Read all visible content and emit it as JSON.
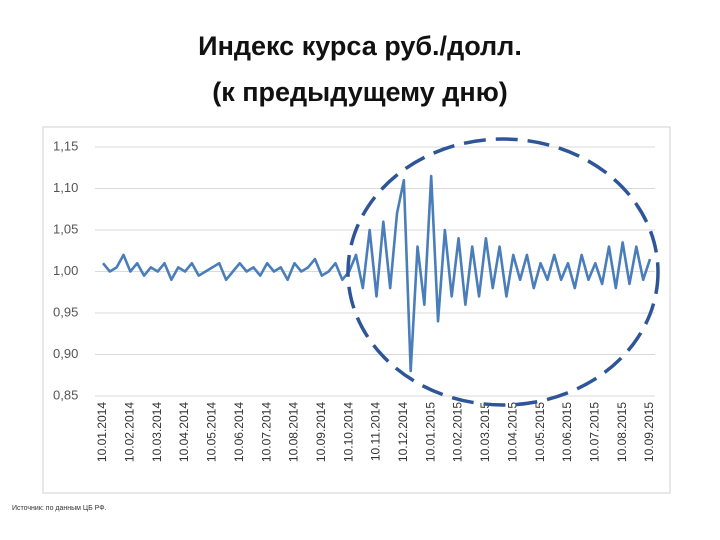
{
  "title_lines": [
    "Индекс курса руб./долл.",
    "(к предыдущему дню)"
  ],
  "source": "Источник: по данным ЦБ РФ.",
  "chart_data": {
    "type": "line",
    "categories": [
      "10.01.2014",
      null,
      null,
      null,
      "10.02.2014",
      null,
      null,
      null,
      "10.03.2014",
      null,
      null,
      null,
      "10.04.2014",
      null,
      null,
      null,
      "10.05.2014",
      null,
      null,
      null,
      "10.06.2014",
      null,
      null,
      null,
      "10.07.2014",
      null,
      null,
      null,
      "10.08.2014",
      null,
      null,
      null,
      "10.09.2014",
      null,
      null,
      null,
      "10.10.2014",
      null,
      null,
      null,
      "10.11.2014",
      null,
      null,
      null,
      "10.12.2014",
      null,
      null,
      null,
      "10.01.2015",
      null,
      null,
      null,
      "10.02.2015",
      null,
      null,
      null,
      "10.03.2015",
      null,
      null,
      null,
      "10.04.2015",
      null,
      null,
      null,
      "10.05.2015",
      null,
      null,
      null,
      "10.06.2015",
      null,
      null,
      null,
      "10.07.2015",
      null,
      null,
      null,
      "10.08.2015",
      null,
      null,
      null,
      "10.09.2015"
    ],
    "values": [
      1.01,
      1.0,
      1.005,
      1.02,
      1.0,
      1.01,
      0.995,
      1.005,
      1.0,
      1.01,
      0.99,
      1.005,
      1.0,
      1.01,
      0.995,
      1.0,
      1.005,
      1.01,
      0.99,
      1.0,
      1.01,
      1.0,
      1.005,
      0.995,
      1.01,
      1.0,
      1.005,
      0.99,
      1.01,
      1.0,
      1.005,
      1.015,
      0.995,
      1.0,
      1.01,
      0.99,
      1.0,
      1.02,
      0.98,
      1.05,
      0.97,
      1.06,
      0.98,
      1.07,
      1.11,
      0.88,
      1.03,
      0.96,
      1.115,
      0.94,
      1.05,
      0.97,
      1.04,
      0.96,
      1.03,
      0.97,
      1.04,
      0.98,
      1.03,
      0.97,
      1.02,
      0.99,
      1.02,
      0.98,
      1.01,
      0.99,
      1.02,
      0.99,
      1.01,
      0.98,
      1.02,
      0.99,
      1.01,
      0.985,
      1.03,
      0.98,
      1.035,
      0.985,
      1.03,
      0.99,
      1.015
    ],
    "color": "#4a7ebb",
    "ylim": [
      0.85,
      1.15
    ],
    "yticks": [
      {
        "value": 0.85,
        "label": "0,85"
      },
      {
        "value": 0.9,
        "label": "0,90"
      },
      {
        "value": 0.95,
        "label": "0,95"
      },
      {
        "value": 1.0,
        "label": "1,00"
      },
      {
        "value": 1.05,
        "label": "1,05"
      },
      {
        "value": 1.1,
        "label": "1,10"
      },
      {
        "value": 1.15,
        "label": "1,15"
      }
    ],
    "grid": true
  }
}
